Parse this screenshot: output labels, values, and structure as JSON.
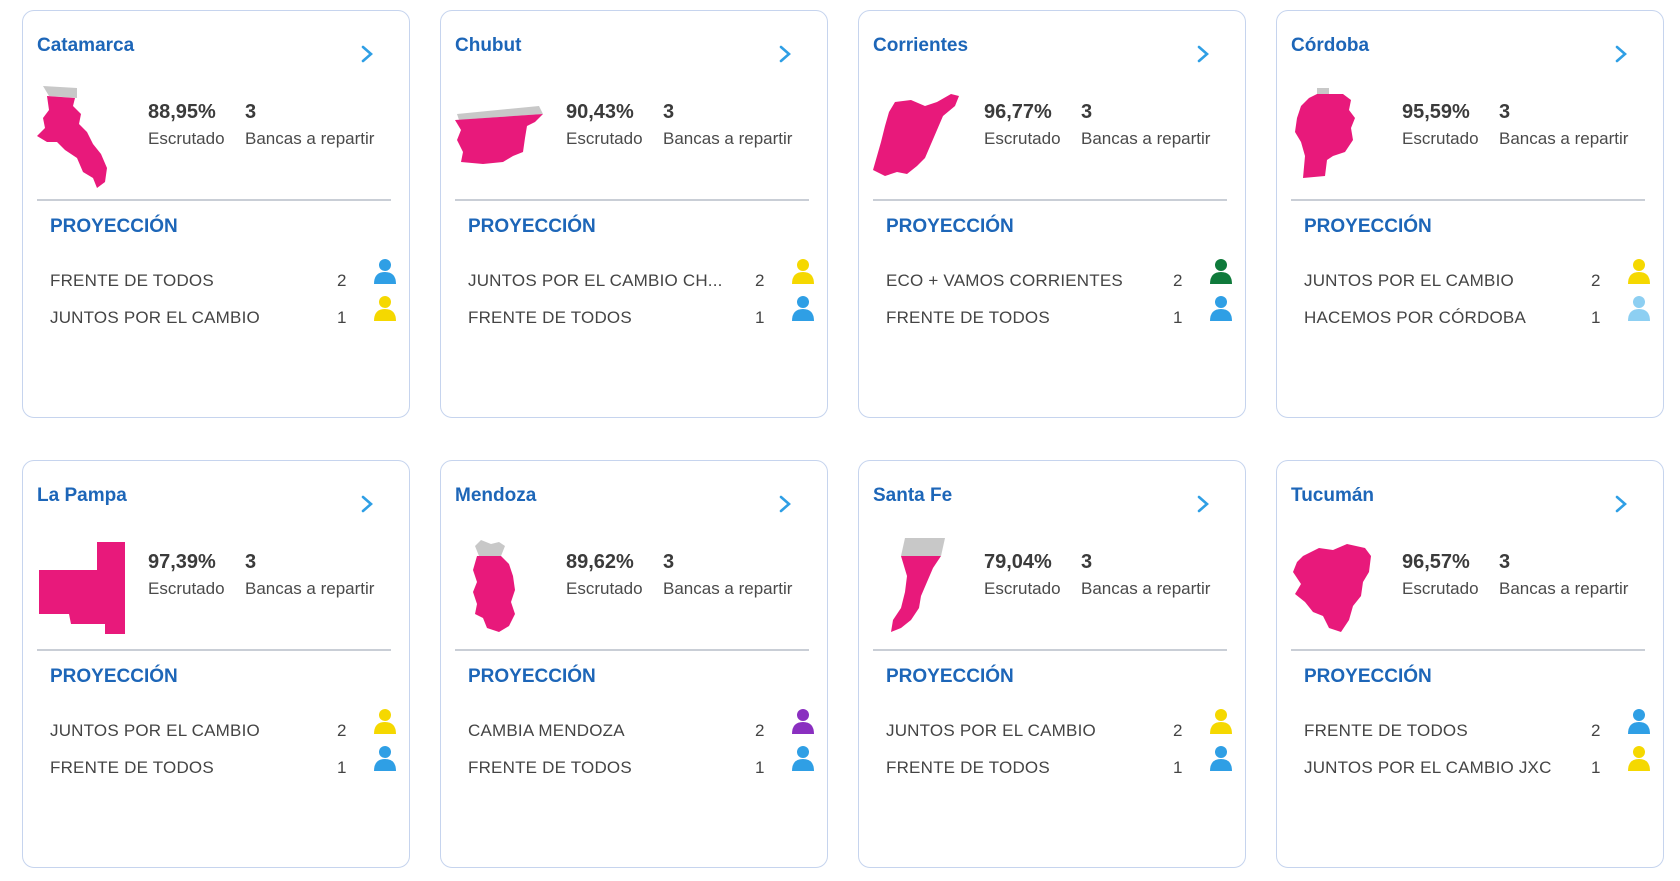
{
  "labels": {
    "escrutado": "Escrutado",
    "bancas": "Bancas a repartir",
    "proyeccion": "PROYECCIÓN"
  },
  "colors": {
    "brand_blue": "#1d66b8",
    "map_fill": "#e8197b",
    "map_unscrutinized": "#c8c8c8",
    "frente_de_todos": "#2f9fe5",
    "juntos_por_el_cambio": "#f5d800",
    "eco_vamos_corrientes": "#0f7a3b",
    "hacemos_por_cordoba": "#8dcff2",
    "cambia_mendoza": "#8a2fc0"
  },
  "provinces": [
    {
      "name": "Catamarca",
      "pct": "88,95%",
      "seats": "3",
      "parties": [
        {
          "name": "FRENTE DE TODOS",
          "count": "2",
          "color": "#2f9fe5"
        },
        {
          "name": "JUNTOS POR EL CAMBIO",
          "count": "1",
          "color": "#f5d800"
        }
      ]
    },
    {
      "name": "Chubut",
      "pct": "90,43%",
      "seats": "3",
      "parties": [
        {
          "name": "JUNTOS POR EL CAMBIO CH...",
          "count": "2",
          "color": "#f5d800"
        },
        {
          "name": "FRENTE DE TODOS",
          "count": "1",
          "color": "#2f9fe5"
        }
      ]
    },
    {
      "name": "Corrientes",
      "pct": "96,77%",
      "seats": "3",
      "parties": [
        {
          "name": "ECO + VAMOS CORRIENTES",
          "count": "2",
          "color": "#0f7a3b"
        },
        {
          "name": "FRENTE DE TODOS",
          "count": "1",
          "color": "#2f9fe5"
        }
      ]
    },
    {
      "name": "Córdoba",
      "pct": "95,59%",
      "seats": "3",
      "parties": [
        {
          "name": "JUNTOS POR EL CAMBIO",
          "count": "2",
          "color": "#f5d800"
        },
        {
          "name": "HACEMOS POR CÓRDOBA",
          "count": "1",
          "color": "#8dcff2"
        }
      ]
    },
    {
      "name": "La Pampa",
      "pct": "97,39%",
      "seats": "3",
      "parties": [
        {
          "name": "JUNTOS POR EL CAMBIO",
          "count": "2",
          "color": "#f5d800"
        },
        {
          "name": "FRENTE DE TODOS",
          "count": "1",
          "color": "#2f9fe5"
        }
      ]
    },
    {
      "name": "Mendoza",
      "pct": "89,62%",
      "seats": "3",
      "parties": [
        {
          "name": "CAMBIA MENDOZA",
          "count": "2",
          "color": "#8a2fc0"
        },
        {
          "name": "FRENTE DE TODOS",
          "count": "1",
          "color": "#2f9fe5"
        }
      ]
    },
    {
      "name": "Santa Fe",
      "pct": "79,04%",
      "seats": "3",
      "parties": [
        {
          "name": "JUNTOS POR EL CAMBIO",
          "count": "2",
          "color": "#f5d800"
        },
        {
          "name": "FRENTE DE TODOS",
          "count": "1",
          "color": "#2f9fe5"
        }
      ]
    },
    {
      "name": "Tucumán",
      "pct": "96,57%",
      "seats": "3",
      "parties": [
        {
          "name": "FRENTE DE TODOS",
          "count": "2",
          "color": "#2f9fe5"
        },
        {
          "name": "JUNTOS POR EL CAMBIO JXC",
          "count": "1",
          "color": "#f5d800"
        }
      ]
    }
  ]
}
